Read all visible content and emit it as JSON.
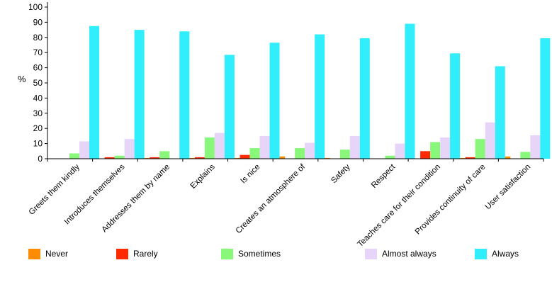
{
  "chart_data": {
    "type": "bar",
    "ylabel": "%",
    "ylim": [
      0,
      100
    ],
    "yticks": [
      0,
      10,
      20,
      30,
      40,
      50,
      60,
      70,
      80,
      90,
      100
    ],
    "grid": false,
    "legend_position": "bottom",
    "categories": [
      "Greets them kindly",
      "Introduces themselves",
      "Addresses them by name",
      "Explains",
      "Is nice",
      "Creates an atmosphere of",
      "Safety",
      "Respect",
      "Teaches care for their condition",
      "Provides continuity of care",
      "User satisfaction"
    ],
    "series": [
      {
        "name": "Never",
        "color": "#ff8c00",
        "values": [
          0,
          0,
          0.5,
          0.5,
          0.5,
          1.5,
          0.5,
          0,
          0,
          0.5,
          1.5
        ]
      },
      {
        "name": "Rarely",
        "color": "#ff2a00",
        "values": [
          0,
          1,
          1,
          1,
          2.5,
          0,
          0,
          0,
          5,
          1,
          0
        ]
      },
      {
        "name": "Sometimes",
        "color": "#88f77a",
        "values": [
          3.5,
          2,
          5,
          14,
          7,
          7,
          6,
          2,
          11,
          13,
          4.5
        ]
      },
      {
        "name": "Almost always",
        "color": "#e7d4f9",
        "values": [
          11.5,
          13,
          0,
          17,
          15,
          10.5,
          15,
          10,
          14,
          24,
          15.5
        ]
      },
      {
        "name": "Always",
        "color": "#30eefb",
        "values": [
          87.5,
          85,
          84,
          68.5,
          76.5,
          82,
          79.5,
          89,
          69.5,
          61,
          79.5
        ]
      }
    ]
  }
}
